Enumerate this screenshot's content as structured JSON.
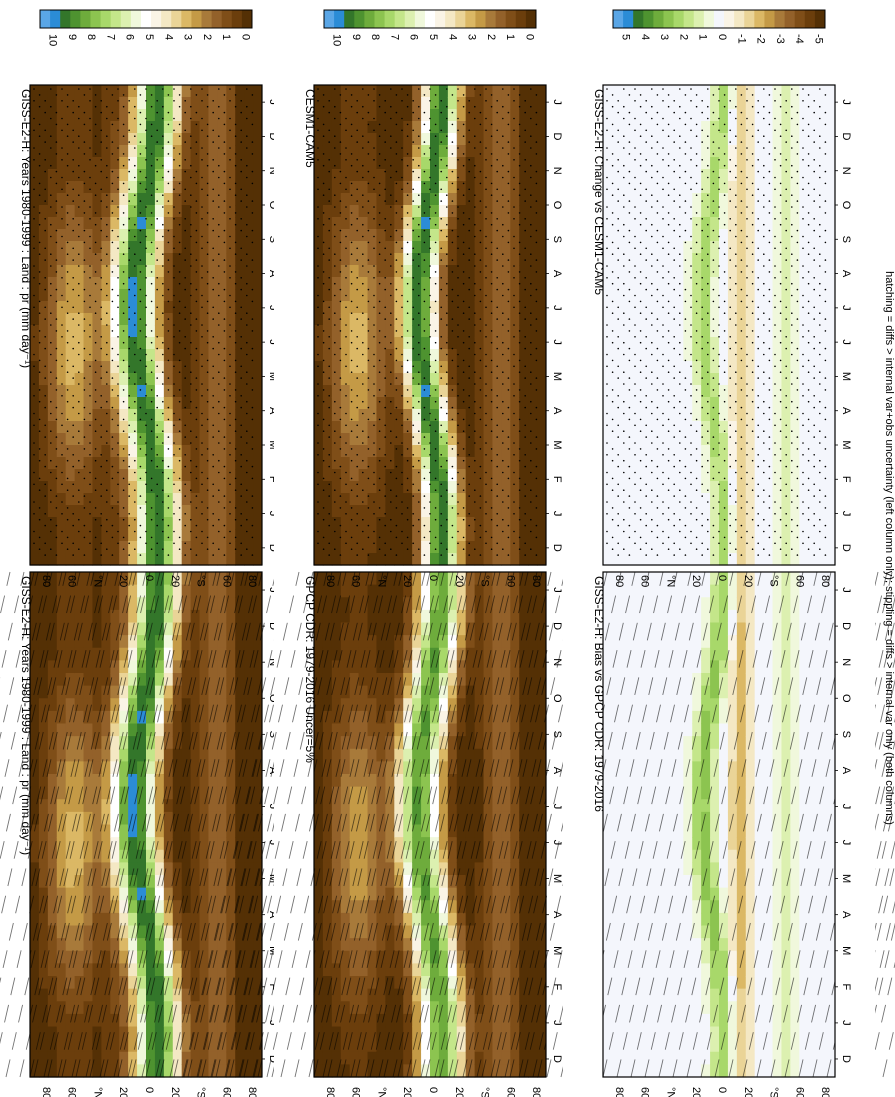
{
  "footer_text": "hatching = diffs > internal var+obs uncertainty (left column only); stippling = diffs > internal var only (both columns)",
  "chart_data": [
    {
      "type": "heatmap",
      "id": "giss-lat-cycle",
      "title": "GISS-E2-H: Years 1980-1999 : Land : pr (mm day⁻¹)",
      "x_ticks": [
        "D",
        "J",
        "F",
        "M",
        "A",
        "M",
        "J",
        "J",
        "A",
        "S",
        "O",
        "N",
        "D",
        "J"
      ],
      "y_ticks": [
        "80",
        "60",
        "°N",
        "20",
        "0",
        "20",
        "°S",
        "60",
        "80"
      ],
      "colorbar": [
        "10",
        "9",
        "8",
        "7",
        "6",
        "5",
        "4",
        "3",
        "2",
        "1",
        "0"
      ],
      "palette": "abs",
      "field": "abs",
      "variant": "giss",
      "overlay": "hatch"
    },
    {
      "type": "heatmap",
      "id": "giss-lon",
      "title": "GISS-E2-H: Years 1980-1999 : Land : pr (mm day⁻¹)",
      "x_ticks": [
        "D",
        "J",
        "F",
        "M",
        "A",
        "M",
        "J",
        "J",
        "A",
        "S",
        "O",
        "N",
        "D",
        "J"
      ],
      "y_ticks": [
        "80",
        "60",
        "°N",
        "20",
        "0",
        "20",
        "°S",
        "60",
        "80"
      ],
      "colorbar": [
        "10",
        "9",
        "8",
        "7",
        "6",
        "5",
        "4",
        "3",
        "2",
        "1",
        "0"
      ],
      "palette": "abs",
      "field": "abs",
      "variant": "giss",
      "overlay": "stipple"
    },
    {
      "type": "heatmap",
      "id": "gpcp",
      "title": "GPCP CDR: 1979-2016 Uncer=5%",
      "x_ticks": [
        "D",
        "J",
        "F",
        "M",
        "A",
        "M",
        "J",
        "J",
        "A",
        "S",
        "O",
        "N",
        "D",
        "J"
      ],
      "y_ticks": [
        "80",
        "60",
        "°N",
        "20",
        "0",
        "20",
        "°S",
        "60",
        "80"
      ],
      "colorbar": [
        "10",
        "9",
        "8",
        "7",
        "6",
        "5",
        "4",
        "3",
        "2",
        "1",
        "0"
      ],
      "palette": "abs",
      "field": "abs",
      "variant": "obs",
      "overlay": "hatch"
    },
    {
      "type": "heatmap",
      "id": "cesm",
      "title": "CESM1-CAM5",
      "x_ticks": [
        "D",
        "J",
        "F",
        "M",
        "A",
        "M",
        "J",
        "J",
        "A",
        "S",
        "O",
        "N",
        "D",
        "J"
      ],
      "y_ticks": [
        "80",
        "60",
        "°N",
        "20",
        "0",
        "20",
        "°S",
        "60",
        "80"
      ],
      "colorbar": [
        "10",
        "9",
        "8",
        "7",
        "6",
        "5",
        "4",
        "3",
        "2",
        "1",
        "0"
      ],
      "palette": "abs",
      "field": "abs",
      "variant": "cesm",
      "overlay": "stipple"
    },
    {
      "type": "heatmap",
      "id": "bias",
      "title": "GISS-E2-H: Bias vs GPCP CDR: 1979-2016",
      "x_ticks": [
        "D",
        "J",
        "F",
        "M",
        "A",
        "M",
        "J",
        "J",
        "A",
        "S",
        "O",
        "N",
        "D",
        "J"
      ],
      "y_ticks": [
        "80",
        "60",
        "°N",
        "20",
        "0",
        "20",
        "°S",
        "60",
        "80"
      ],
      "colorbar": [
        "5",
        "4",
        "3",
        "2",
        "1",
        "0",
        "-1",
        "-2",
        "-3",
        "-4",
        "-5"
      ],
      "palette": "diff",
      "field": "diff",
      "variant": "bias",
      "overlay": "hatch"
    },
    {
      "type": "heatmap",
      "id": "change",
      "title": "GISS-E2-H: Change vs CESM1-CAM5",
      "x_ticks": [
        "D",
        "J",
        "F",
        "M",
        "A",
        "M",
        "J",
        "J",
        "A",
        "S",
        "O",
        "N",
        "D",
        "J"
      ],
      "y_ticks": [
        "80",
        "60",
        "°N",
        "20",
        "0",
        "20",
        "°S",
        "60",
        "80"
      ],
      "colorbar": [
        "5",
        "4",
        "3",
        "2",
        "1",
        "0",
        "-1",
        "-2",
        "-3",
        "-4",
        "-5"
      ],
      "palette": "diff",
      "field": "diff",
      "variant": "change",
      "overlay": "stipple"
    }
  ],
  "palettes": {
    "abs": [
      "#543005",
      "#6b3e0c",
      "#7f4e18",
      "#93612a",
      "#a87a3a",
      "#c49a46",
      "#dbb865",
      "#ead497",
      "#f4e8c4",
      "#faf4e6",
      "#ffffff",
      "#f0f8dc",
      "#dcf0b0",
      "#c4e68a",
      "#a8d86a",
      "#8cc450",
      "#6eac3c",
      "#4e9330",
      "#33762a",
      "#2b8cd6",
      "#5aa6e6"
    ],
    "diff": [
      "#543005",
      "#6b3e0c",
      "#7f4e18",
      "#93612a",
      "#a87a3a",
      "#c49a46",
      "#dbb865",
      "#ead497",
      "#f4e8c4",
      "#faf4e6",
      "#f4f6fc",
      "#f0f8dc",
      "#dcf0b0",
      "#c4e68a",
      "#a8d86a",
      "#8cc450",
      "#6eac3c",
      "#4e9330",
      "#33762a",
      "#2b8cd6",
      "#5aa6e6"
    ]
  }
}
